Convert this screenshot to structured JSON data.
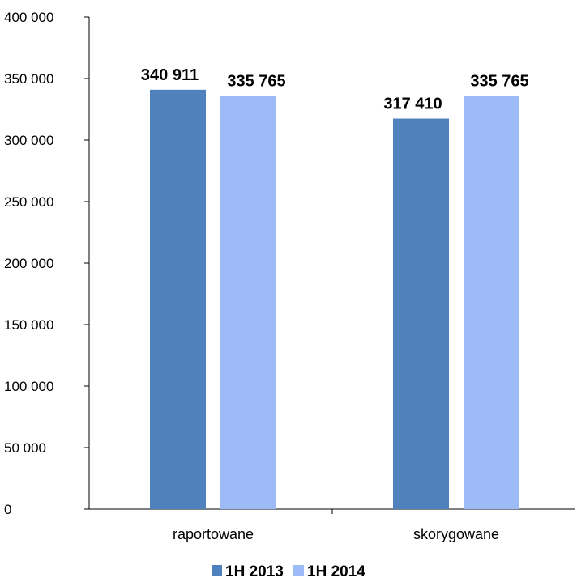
{
  "chart_data": {
    "type": "bar",
    "title": "",
    "xlabel": "",
    "ylabel": "",
    "categories": [
      "raportowane",
      "skorygowane"
    ],
    "series": [
      {
        "name": "1H 2013",
        "values": [
          340911,
          317410
        ],
        "value_labels": [
          "340 911",
          "317 410"
        ],
        "color": "#4F81BD"
      },
      {
        "name": "1H 2014",
        "values": [
          335765,
          335765
        ],
        "value_labels": [
          "335 765",
          "335 765"
        ],
        "color": "#9DBBF7"
      }
    ],
    "ylim": [
      0,
      400000
    ],
    "y_ticks": [
      0,
      50000,
      100000,
      150000,
      200000,
      250000,
      300000,
      350000,
      400000
    ],
    "y_tick_labels": [
      "0",
      "50 000",
      "100 000",
      "150 000",
      "200 000",
      "250 000",
      "300 000",
      "350 000",
      "400 000"
    ],
    "grid": false,
    "legend_position": "bottom"
  }
}
